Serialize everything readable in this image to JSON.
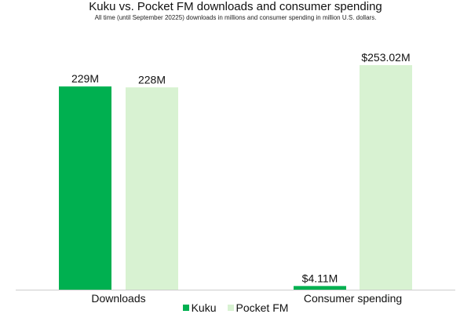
{
  "chart_data": {
    "type": "bar",
    "title": "Kuku vs. Pocket FM downloads and consumer spending",
    "subtitle": "All time (until September 20225) downloads in millions and consumer spending in million U.S. dollars.",
    "categories": [
      "Downloads",
      "Consumer spending"
    ],
    "series": [
      {
        "name": "Kuku",
        "values": [
          229,
          4.11
        ],
        "labels": [
          "229M",
          "$4.11M"
        ],
        "color": "#00b050"
      },
      {
        "name": "Pocket FM",
        "values": [
          228,
          253.02
        ],
        "labels": [
          "228M",
          "$253.02M"
        ],
        "color": "#d8f2d2"
      }
    ],
    "ylim": [
      0,
      253.02
    ],
    "grid": false,
    "legend": "bottom"
  }
}
